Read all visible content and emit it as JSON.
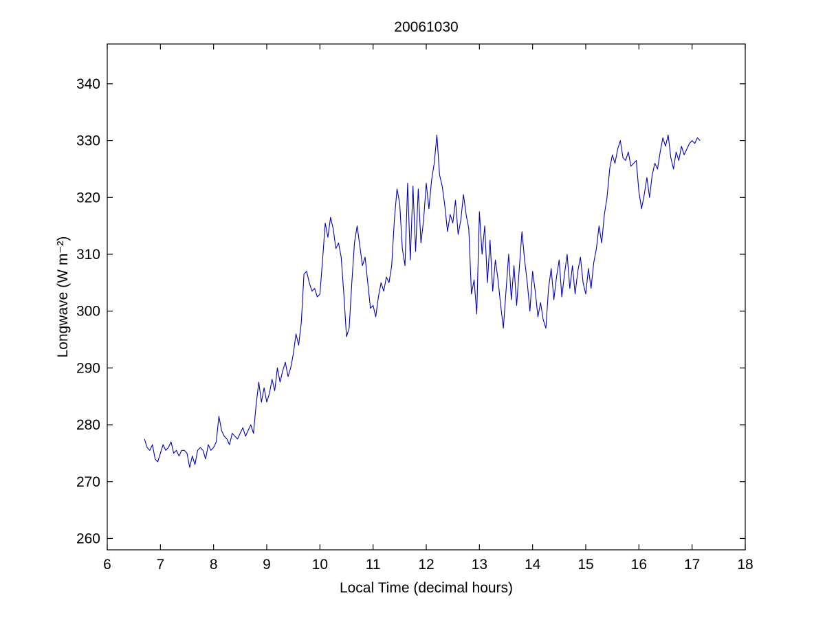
{
  "figure": {
    "background": "#ffffff",
    "title": "20061030"
  },
  "chart_data": {
    "type": "line",
    "title": "20061030",
    "xlabel": "Local Time (decimal hours)",
    "ylabel": "Longwave (W m⁻²)",
    "xlim": [
      6,
      18
    ],
    "ylim": [
      258,
      347
    ],
    "xticks": [
      6,
      7,
      8,
      9,
      10,
      11,
      12,
      13,
      14,
      15,
      16,
      17,
      18
    ],
    "yticks": [
      260,
      270,
      280,
      290,
      300,
      310,
      320,
      330,
      340
    ],
    "grid": false,
    "legend": "none",
    "line_color": "#0000bb",
    "axis_color": "#000000",
    "series": [
      {
        "name": "longwave",
        "points": [
          [
            6.7,
            277.5
          ],
          [
            6.75,
            276.0
          ],
          [
            6.8,
            275.5
          ],
          [
            6.85,
            276.5
          ],
          [
            6.9,
            274.0
          ],
          [
            6.95,
            273.5
          ],
          [
            7.0,
            275.0
          ],
          [
            7.05,
            276.5
          ],
          [
            7.1,
            275.5
          ],
          [
            7.15,
            276.0
          ],
          [
            7.2,
            277.0
          ],
          [
            7.25,
            275.0
          ],
          [
            7.3,
            275.5
          ],
          [
            7.35,
            274.5
          ],
          [
            7.4,
            275.5
          ],
          [
            7.45,
            275.5
          ],
          [
            7.5,
            275.0
          ],
          [
            7.55,
            272.5
          ],
          [
            7.6,
            274.5
          ],
          [
            7.65,
            273.0
          ],
          [
            7.7,
            275.5
          ],
          [
            7.75,
            276.0
          ],
          [
            7.8,
            275.5
          ],
          [
            7.85,
            274.0
          ],
          [
            7.9,
            276.5
          ],
          [
            7.95,
            275.5
          ],
          [
            8.0,
            276.0
          ],
          [
            8.05,
            277.0
          ],
          [
            8.1,
            281.5
          ],
          [
            8.15,
            279.0
          ],
          [
            8.2,
            278.0
          ],
          [
            8.25,
            277.5
          ],
          [
            8.3,
            276.5
          ],
          [
            8.35,
            278.5
          ],
          [
            8.4,
            278.0
          ],
          [
            8.45,
            277.5
          ],
          [
            8.5,
            278.5
          ],
          [
            8.55,
            279.5
          ],
          [
            8.6,
            278.0
          ],
          [
            8.65,
            279.0
          ],
          [
            8.7,
            280.0
          ],
          [
            8.75,
            278.5
          ],
          [
            8.8,
            283.5
          ],
          [
            8.85,
            287.5
          ],
          [
            8.9,
            284.0
          ],
          [
            8.95,
            286.5
          ],
          [
            9.0,
            284.0
          ],
          [
            9.05,
            285.5
          ],
          [
            9.1,
            288.0
          ],
          [
            9.15,
            286.0
          ],
          [
            9.2,
            290.0
          ],
          [
            9.25,
            287.5
          ],
          [
            9.3,
            289.5
          ],
          [
            9.35,
            291.0
          ],
          [
            9.4,
            288.5
          ],
          [
            9.45,
            290.0
          ],
          [
            9.5,
            292.5
          ],
          [
            9.55,
            296.0
          ],
          [
            9.6,
            294.0
          ],
          [
            9.65,
            298.0
          ],
          [
            9.7,
            306.5
          ],
          [
            9.75,
            307.0
          ],
          [
            9.8,
            305.0
          ],
          [
            9.85,
            303.5
          ],
          [
            9.9,
            304.0
          ],
          [
            9.95,
            302.5
          ],
          [
            10.0,
            303.0
          ],
          [
            10.05,
            309.0
          ],
          [
            10.1,
            315.5
          ],
          [
            10.15,
            313.0
          ],
          [
            10.2,
            316.5
          ],
          [
            10.25,
            314.5
          ],
          [
            10.3,
            311.0
          ],
          [
            10.35,
            312.0
          ],
          [
            10.4,
            309.5
          ],
          [
            10.45,
            303.0
          ],
          [
            10.5,
            295.5
          ],
          [
            10.55,
            297.0
          ],
          [
            10.6,
            305.0
          ],
          [
            10.65,
            312.0
          ],
          [
            10.7,
            315.0
          ],
          [
            10.75,
            311.5
          ],
          [
            10.8,
            308.0
          ],
          [
            10.85,
            309.5
          ],
          [
            10.9,
            305.0
          ],
          [
            10.95,
            300.5
          ],
          [
            11.0,
            301.0
          ],
          [
            11.05,
            299.0
          ],
          [
            11.1,
            302.5
          ],
          [
            11.15,
            305.0
          ],
          [
            11.2,
            303.5
          ],
          [
            11.25,
            306.0
          ],
          [
            11.3,
            305.0
          ],
          [
            11.35,
            308.0
          ],
          [
            11.4,
            316.0
          ],
          [
            11.45,
            321.5
          ],
          [
            11.5,
            319.0
          ],
          [
            11.55,
            311.0
          ],
          [
            11.6,
            308.0
          ],
          [
            11.65,
            322.5
          ],
          [
            11.7,
            309.0
          ],
          [
            11.75,
            322.0
          ],
          [
            11.8,
            310.5
          ],
          [
            11.85,
            321.5
          ],
          [
            11.9,
            312.0
          ],
          [
            11.95,
            316.0
          ],
          [
            12.0,
            322.5
          ],
          [
            12.05,
            318.0
          ],
          [
            12.1,
            323.0
          ],
          [
            12.15,
            326.0
          ],
          [
            12.2,
            331.0
          ],
          [
            12.25,
            324.0
          ],
          [
            12.3,
            322.0
          ],
          [
            12.35,
            318.5
          ],
          [
            12.4,
            314.0
          ],
          [
            12.45,
            317.0
          ],
          [
            12.5,
            315.5
          ],
          [
            12.55,
            319.5
          ],
          [
            12.6,
            313.5
          ],
          [
            12.65,
            316.0
          ],
          [
            12.7,
            320.5
          ],
          [
            12.75,
            317.0
          ],
          [
            12.8,
            314.5
          ],
          [
            12.85,
            303.0
          ],
          [
            12.9,
            305.5
          ],
          [
            12.95,
            299.5
          ],
          [
            13.0,
            317.5
          ],
          [
            13.05,
            310.0
          ],
          [
            13.1,
            315.0
          ],
          [
            13.15,
            305.0
          ],
          [
            13.2,
            312.5
          ],
          [
            13.25,
            303.5
          ],
          [
            13.3,
            309.0
          ],
          [
            13.35,
            305.5
          ],
          [
            13.4,
            301.0
          ],
          [
            13.45,
            297.0
          ],
          [
            13.5,
            303.5
          ],
          [
            13.55,
            310.0
          ],
          [
            13.6,
            302.0
          ],
          [
            13.65,
            308.0
          ],
          [
            13.7,
            301.0
          ],
          [
            13.75,
            307.5
          ],
          [
            13.8,
            314.0
          ],
          [
            13.85,
            309.0
          ],
          [
            13.9,
            305.0
          ],
          [
            13.95,
            300.0
          ],
          [
            14.0,
            307.0
          ],
          [
            14.05,
            303.5
          ],
          [
            14.1,
            299.0
          ],
          [
            14.15,
            301.5
          ],
          [
            14.2,
            298.5
          ],
          [
            14.25,
            297.0
          ],
          [
            14.3,
            304.0
          ],
          [
            14.35,
            307.5
          ],
          [
            14.4,
            302.0
          ],
          [
            14.45,
            306.0
          ],
          [
            14.5,
            309.0
          ],
          [
            14.55,
            302.5
          ],
          [
            14.6,
            306.5
          ],
          [
            14.65,
            310.0
          ],
          [
            14.7,
            304.0
          ],
          [
            14.75,
            308.0
          ],
          [
            14.8,
            303.0
          ],
          [
            14.85,
            307.0
          ],
          [
            14.9,
            309.5
          ],
          [
            14.95,
            305.0
          ],
          [
            15.0,
            303.0
          ],
          [
            15.05,
            307.5
          ],
          [
            15.1,
            304.0
          ],
          [
            15.15,
            308.5
          ],
          [
            15.2,
            311.0
          ],
          [
            15.25,
            315.0
          ],
          [
            15.3,
            312.0
          ],
          [
            15.35,
            317.0
          ],
          [
            15.4,
            320.0
          ],
          [
            15.45,
            325.0
          ],
          [
            15.5,
            327.5
          ],
          [
            15.55,
            326.0
          ],
          [
            15.6,
            328.5
          ],
          [
            15.65,
            330.0
          ],
          [
            15.7,
            327.0
          ],
          [
            15.75,
            326.5
          ],
          [
            15.8,
            328.0
          ],
          [
            15.85,
            325.5
          ],
          [
            15.9,
            326.0
          ],
          [
            15.95,
            326.5
          ],
          [
            16.0,
            321.0
          ],
          [
            16.05,
            318.0
          ],
          [
            16.1,
            320.5
          ],
          [
            16.15,
            323.5
          ],
          [
            16.2,
            320.0
          ],
          [
            16.25,
            324.0
          ],
          [
            16.3,
            326.0
          ],
          [
            16.35,
            325.0
          ],
          [
            16.4,
            328.0
          ],
          [
            16.45,
            330.5
          ],
          [
            16.5,
            329.0
          ],
          [
            16.55,
            331.0
          ],
          [
            16.6,
            327.0
          ],
          [
            16.65,
            325.0
          ],
          [
            16.7,
            328.0
          ],
          [
            16.75,
            326.5
          ],
          [
            16.8,
            329.0
          ],
          [
            16.85,
            327.5
          ],
          [
            16.9,
            328.5
          ],
          [
            16.95,
            329.5
          ],
          [
            17.0,
            330.0
          ],
          [
            17.05,
            329.5
          ],
          [
            17.1,
            330.5
          ],
          [
            17.15,
            330.0
          ]
        ]
      }
    ]
  }
}
